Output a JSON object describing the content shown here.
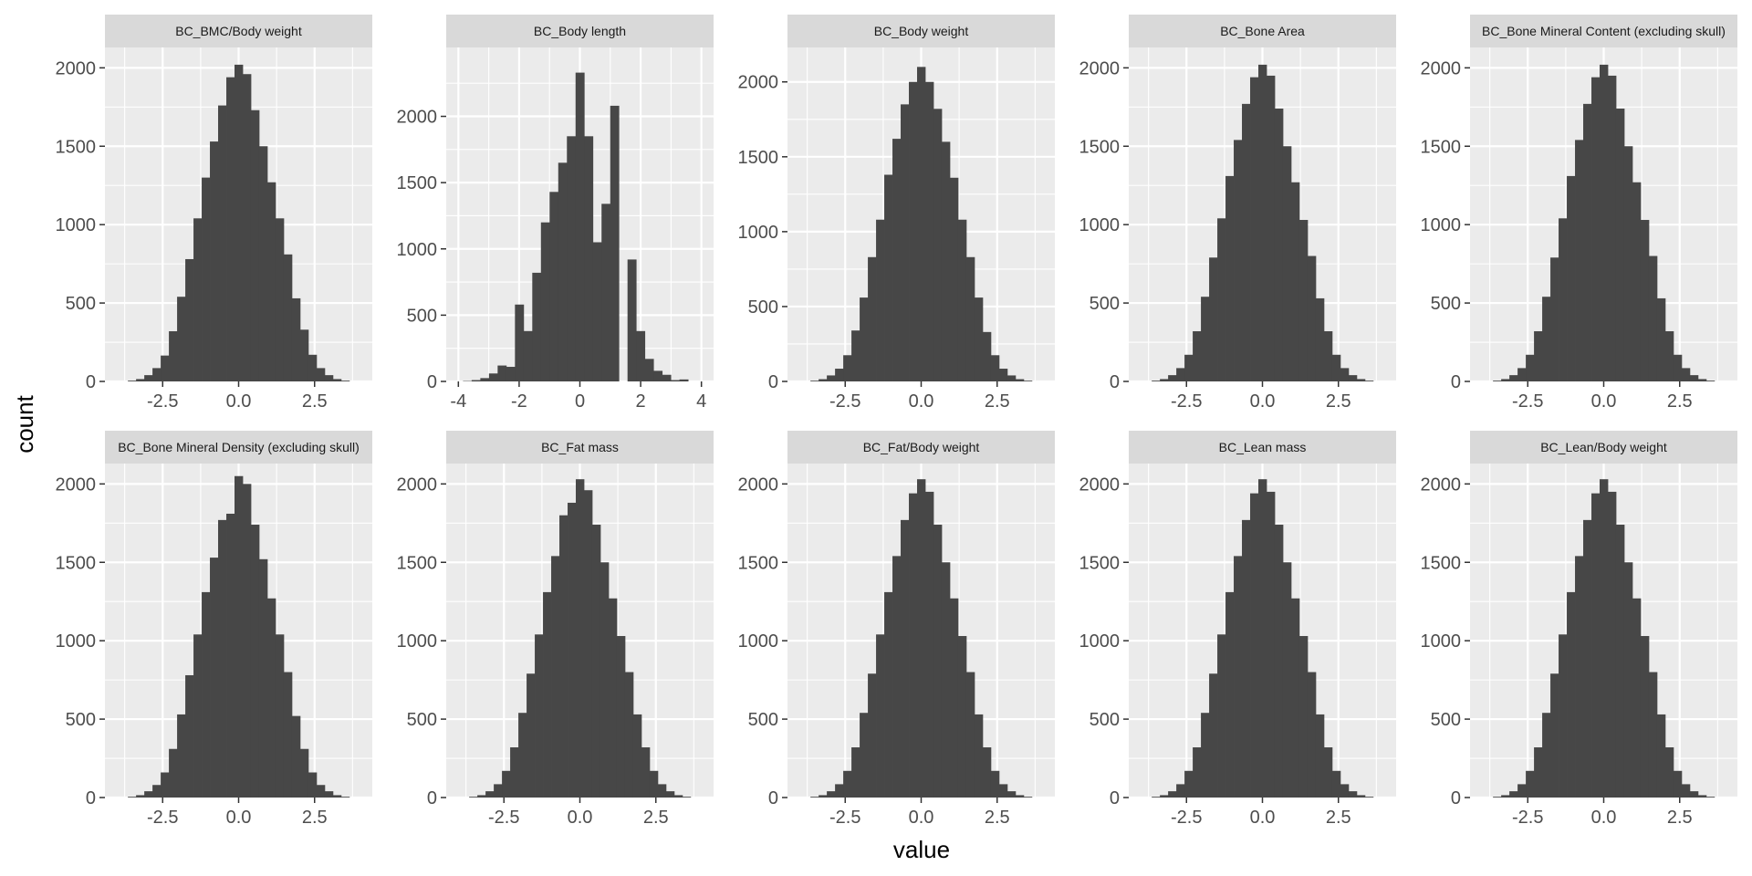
{
  "figure": {
    "xlabel": "value",
    "ylabel": "count"
  },
  "colors": {
    "bar": "#474747",
    "panel_bg": "#ebebeb",
    "strip_bg": "#d9d9d9",
    "grid": "#ffffff",
    "tick_text": "#4d4d4d",
    "strip_text": "#1a1a1a"
  },
  "chart_data": [
    {
      "type": "bar",
      "title": "BC_BMC/Body weight",
      "xlim": [
        -4.4,
        4.4
      ],
      "ylim": [
        0,
        2130
      ],
      "xticks": [
        -2.5,
        0.0,
        2.5
      ],
      "xtick_labels": [
        "-2.5",
        "0.0",
        "2.5"
      ],
      "yticks": [
        0,
        500,
        1000,
        1500,
        2000
      ],
      "ytick_labels": [
        "0",
        "500",
        "1000",
        "1500",
        "2000"
      ],
      "bin_width": 0.27,
      "bin_centers": [
        -3.51,
        -3.24,
        -2.97,
        -2.7,
        -2.43,
        -2.16,
        -1.89,
        -1.62,
        -1.35,
        -1.08,
        -0.81,
        -0.54,
        -0.27,
        0.0,
        0.27,
        0.54,
        0.81,
        1.08,
        1.35,
        1.62,
        1.89,
        2.16,
        2.43,
        2.7,
        2.97,
        3.24,
        3.51
      ],
      "values": [
        5,
        15,
        40,
        85,
        165,
        320,
        540,
        780,
        1040,
        1300,
        1530,
        1760,
        1940,
        2020,
        1960,
        1730,
        1500,
        1270,
        1040,
        810,
        530,
        330,
        170,
        85,
        40,
        15,
        5
      ]
    },
    {
      "type": "bar",
      "title": "BC_Body length",
      "xlim": [
        -4.4,
        4.4
      ],
      "ylim": [
        0,
        2520
      ],
      "xticks": [
        -4,
        -2,
        0,
        2,
        4
      ],
      "xtick_labels": [
        "-4",
        "-2",
        "0",
        "2",
        "4"
      ],
      "yticks": [
        0,
        500,
        1000,
        1500,
        2000
      ],
      "ytick_labels": [
        "0",
        "500",
        "1000",
        "1500",
        "2000"
      ],
      "bin_width": 0.285,
      "bin_centers": [
        -3.705,
        -3.42,
        -3.135,
        -2.85,
        -2.565,
        -2.28,
        -1.995,
        -1.71,
        -1.425,
        -1.14,
        -0.855,
        -0.57,
        -0.285,
        0.0,
        0.285,
        0.57,
        0.855,
        1.14,
        1.425,
        1.71,
        1.995,
        2.28,
        2.565,
        2.85,
        3.135,
        3.42,
        3.705
      ],
      "values": [
        3,
        10,
        25,
        60,
        120,
        110,
        580,
        380,
        820,
        1200,
        1430,
        1650,
        1850,
        2330,
        1850,
        1050,
        1340,
        2080,
        0,
        920,
        380,
        170,
        80,
        50,
        10,
        15,
        0
      ]
    },
    {
      "type": "bar",
      "title": "BC_Body weight",
      "xlim": [
        -4.4,
        4.4
      ],
      "ylim": [
        0,
        2230
      ],
      "xticks": [
        -2.5,
        0.0,
        2.5
      ],
      "xtick_labels": [
        "-2.5",
        "0.0",
        "2.5"
      ],
      "yticks": [
        0,
        500,
        1000,
        1500,
        2000
      ],
      "ytick_labels": [
        "0",
        "500",
        "1000",
        "1500",
        "2000"
      ],
      "bin_width": 0.27,
      "bin_centers": [
        -3.51,
        -3.24,
        -2.97,
        -2.7,
        -2.43,
        -2.16,
        -1.89,
        -1.62,
        -1.35,
        -1.08,
        -0.81,
        -0.54,
        -0.27,
        0.0,
        0.27,
        0.54,
        0.81,
        1.08,
        1.35,
        1.62,
        1.89,
        2.16,
        2.43,
        2.7,
        2.97,
        3.24,
        3.51
      ],
      "values": [
        5,
        15,
        40,
        85,
        175,
        340,
        560,
        830,
        1080,
        1380,
        1620,
        1850,
        2000,
        2100,
        2000,
        1820,
        1600,
        1360,
        1080,
        830,
        560,
        330,
        175,
        85,
        40,
        15,
        5
      ]
    },
    {
      "type": "bar",
      "title": "BC_Bone Area",
      "xlim": [
        -4.4,
        4.4
      ],
      "ylim": [
        0,
        2130
      ],
      "xticks": [
        -2.5,
        0.0,
        2.5
      ],
      "xtick_labels": [
        "-2.5",
        "0.0",
        "2.5"
      ],
      "yticks": [
        0,
        500,
        1000,
        1500,
        2000
      ],
      "ytick_labels": [
        "0",
        "500",
        "1000",
        "1500",
        "2000"
      ],
      "bin_width": 0.27,
      "bin_centers": [
        -3.51,
        -3.24,
        -2.97,
        -2.7,
        -2.43,
        -2.16,
        -1.89,
        -1.62,
        -1.35,
        -1.08,
        -0.81,
        -0.54,
        -0.27,
        0.0,
        0.27,
        0.54,
        0.81,
        1.08,
        1.35,
        1.62,
        1.89,
        2.16,
        2.43,
        2.7,
        2.97,
        3.24,
        3.51
      ],
      "values": [
        5,
        15,
        40,
        85,
        170,
        320,
        540,
        790,
        1040,
        1310,
        1540,
        1770,
        1940,
        2020,
        1950,
        1740,
        1500,
        1270,
        1030,
        800,
        530,
        320,
        170,
        85,
        40,
        15,
        5
      ]
    },
    {
      "type": "bar",
      "title": "BC_Bone Mineral Content (excluding skull)",
      "xlim": [
        -4.4,
        4.4
      ],
      "ylim": [
        0,
        2130
      ],
      "xticks": [
        -2.5,
        0.0,
        2.5
      ],
      "xtick_labels": [
        "-2.5",
        "0.0",
        "2.5"
      ],
      "yticks": [
        0,
        500,
        1000,
        1500,
        2000
      ],
      "ytick_labels": [
        "0",
        "500",
        "1000",
        "1500",
        "2000"
      ],
      "bin_width": 0.27,
      "bin_centers": [
        -3.51,
        -3.24,
        -2.97,
        -2.7,
        -2.43,
        -2.16,
        -1.89,
        -1.62,
        -1.35,
        -1.08,
        -0.81,
        -0.54,
        -0.27,
        0.0,
        0.27,
        0.54,
        0.81,
        1.08,
        1.35,
        1.62,
        1.89,
        2.16,
        2.43,
        2.7,
        2.97,
        3.24,
        3.51
      ],
      "values": [
        5,
        15,
        40,
        85,
        170,
        320,
        540,
        790,
        1040,
        1310,
        1540,
        1770,
        1940,
        2020,
        1950,
        1740,
        1500,
        1270,
        1030,
        800,
        530,
        320,
        170,
        85,
        40,
        15,
        5
      ]
    },
    {
      "type": "bar",
      "title": "BC_Bone Mineral Density (excluding skull)",
      "xlim": [
        -4.4,
        4.4
      ],
      "ylim": [
        0,
        2130
      ],
      "xticks": [
        -2.5,
        0.0,
        2.5
      ],
      "xtick_labels": [
        "-2.5",
        "0.0",
        "2.5"
      ],
      "yticks": [
        0,
        500,
        1000,
        1500,
        2000
      ],
      "ytick_labels": [
        "0",
        "500",
        "1000",
        "1500",
        "2000"
      ],
      "bin_width": 0.27,
      "bin_centers": [
        -3.51,
        -3.24,
        -2.97,
        -2.7,
        -2.43,
        -2.16,
        -1.89,
        -1.62,
        -1.35,
        -1.08,
        -0.81,
        -0.54,
        -0.27,
        0.0,
        0.27,
        0.54,
        0.81,
        1.08,
        1.35,
        1.62,
        1.89,
        2.16,
        2.43,
        2.7,
        2.97,
        3.24,
        3.51
      ],
      "values": [
        5,
        15,
        40,
        80,
        160,
        310,
        530,
        780,
        1040,
        1310,
        1530,
        1770,
        1810,
        2050,
        2000,
        1740,
        1520,
        1270,
        1040,
        800,
        520,
        310,
        160,
        80,
        40,
        15,
        5
      ]
    },
    {
      "type": "bar",
      "title": "BC_Fat mass",
      "xlim": [
        -4.4,
        4.4
      ],
      "ylim": [
        0,
        2130
      ],
      "xticks": [
        -2.5,
        0.0,
        2.5
      ],
      "xtick_labels": [
        "-2.5",
        "0.0",
        "2.5"
      ],
      "yticks": [
        0,
        500,
        1000,
        1500,
        2000
      ],
      "ytick_labels": [
        "0",
        "500",
        "1000",
        "1500",
        "2000"
      ],
      "bin_width": 0.27,
      "bin_centers": [
        -3.51,
        -3.24,
        -2.97,
        -2.7,
        -2.43,
        -2.16,
        -1.89,
        -1.62,
        -1.35,
        -1.08,
        -0.81,
        -0.54,
        -0.27,
        0.0,
        0.27,
        0.54,
        0.81,
        1.08,
        1.35,
        1.62,
        1.89,
        2.16,
        2.43,
        2.7,
        2.97,
        3.24,
        3.51
      ],
      "values": [
        5,
        15,
        40,
        85,
        170,
        320,
        540,
        790,
        1040,
        1310,
        1540,
        1800,
        1880,
        2030,
        1960,
        1740,
        1500,
        1270,
        1030,
        800,
        530,
        320,
        170,
        85,
        40,
        15,
        5
      ]
    },
    {
      "type": "bar",
      "title": "BC_Fat/Body weight",
      "xlim": [
        -4.4,
        4.4
      ],
      "ylim": [
        0,
        2130
      ],
      "xticks": [
        -2.5,
        0.0,
        2.5
      ],
      "xtick_labels": [
        "-2.5",
        "0.0",
        "2.5"
      ],
      "yticks": [
        0,
        500,
        1000,
        1500,
        2000
      ],
      "ytick_labels": [
        "0",
        "500",
        "1000",
        "1500",
        "2000"
      ],
      "bin_width": 0.27,
      "bin_centers": [
        -3.51,
        -3.24,
        -2.97,
        -2.7,
        -2.43,
        -2.16,
        -1.89,
        -1.62,
        -1.35,
        -1.08,
        -0.81,
        -0.54,
        -0.27,
        0.0,
        0.27,
        0.54,
        0.81,
        1.08,
        1.35,
        1.62,
        1.89,
        2.16,
        2.43,
        2.7,
        2.97,
        3.24,
        3.51
      ],
      "values": [
        5,
        15,
        40,
        85,
        170,
        320,
        540,
        790,
        1040,
        1310,
        1540,
        1770,
        1940,
        2030,
        1950,
        1740,
        1500,
        1270,
        1030,
        800,
        530,
        320,
        170,
        85,
        40,
        15,
        5
      ]
    },
    {
      "type": "bar",
      "title": "BC_Lean mass",
      "xlim": [
        -4.4,
        4.4
      ],
      "ylim": [
        0,
        2130
      ],
      "xticks": [
        -2.5,
        0.0,
        2.5
      ],
      "xtick_labels": [
        "-2.5",
        "0.0",
        "2.5"
      ],
      "yticks": [
        0,
        500,
        1000,
        1500,
        2000
      ],
      "ytick_labels": [
        "0",
        "500",
        "1000",
        "1500",
        "2000"
      ],
      "bin_width": 0.27,
      "bin_centers": [
        -3.51,
        -3.24,
        -2.97,
        -2.7,
        -2.43,
        -2.16,
        -1.89,
        -1.62,
        -1.35,
        -1.08,
        -0.81,
        -0.54,
        -0.27,
        0.0,
        0.27,
        0.54,
        0.81,
        1.08,
        1.35,
        1.62,
        1.89,
        2.16,
        2.43,
        2.7,
        2.97,
        3.24,
        3.51
      ],
      "values": [
        5,
        15,
        40,
        85,
        170,
        320,
        540,
        790,
        1040,
        1310,
        1540,
        1770,
        1940,
        2030,
        1950,
        1740,
        1500,
        1270,
        1030,
        800,
        530,
        320,
        170,
        85,
        40,
        15,
        5
      ]
    },
    {
      "type": "bar",
      "title": "BC_Lean/Body weight",
      "xlim": [
        -4.4,
        4.4
      ],
      "ylim": [
        0,
        2130
      ],
      "xticks": [
        -2.5,
        0.0,
        2.5
      ],
      "xtick_labels": [
        "-2.5",
        "0.0",
        "2.5"
      ],
      "yticks": [
        0,
        500,
        1000,
        1500,
        2000
      ],
      "ytick_labels": [
        "0",
        "500",
        "1000",
        "1500",
        "2000"
      ],
      "bin_width": 0.27,
      "bin_centers": [
        -3.51,
        -3.24,
        -2.97,
        -2.7,
        -2.43,
        -2.16,
        -1.89,
        -1.62,
        -1.35,
        -1.08,
        -0.81,
        -0.54,
        -0.27,
        0.0,
        0.27,
        0.54,
        0.81,
        1.08,
        1.35,
        1.62,
        1.89,
        2.16,
        2.43,
        2.7,
        2.97,
        3.24,
        3.51
      ],
      "values": [
        5,
        15,
        40,
        85,
        170,
        320,
        540,
        790,
        1040,
        1310,
        1540,
        1770,
        1940,
        2030,
        1950,
        1740,
        1500,
        1270,
        1030,
        800,
        530,
        320,
        170,
        85,
        40,
        15,
        5
      ]
    }
  ]
}
